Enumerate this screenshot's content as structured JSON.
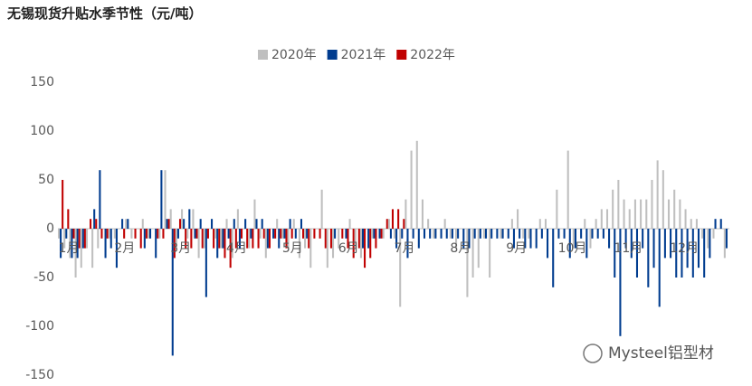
{
  "chart_data": {
    "type": "bar",
    "title": "无锡现货升贴水季节性（元/吨）",
    "watermark": "Mysteel铝型材",
    "categories": [
      "1月",
      null,
      null,
      null,
      null,
      null,
      null,
      null,
      null,
      null,
      "2月",
      null,
      null,
      null,
      null,
      null,
      null,
      null,
      null,
      null,
      "3月",
      null,
      null,
      null,
      null,
      null,
      null,
      null,
      null,
      null,
      "4月",
      null,
      null,
      null,
      null,
      null,
      null,
      null,
      null,
      null,
      "5月",
      null,
      null,
      null,
      null,
      null,
      null,
      null,
      null,
      null,
      "6月",
      null,
      null,
      null,
      null,
      null,
      null,
      null,
      null,
      null,
      "7月",
      null,
      null,
      null,
      null,
      null,
      null,
      null,
      null,
      null,
      "8月",
      null,
      null,
      null,
      null,
      null,
      null,
      null,
      null,
      null,
      "9月",
      null,
      null,
      null,
      null,
      null,
      null,
      null,
      null,
      null,
      "10月",
      null,
      null,
      null,
      null,
      null,
      null,
      null,
      null,
      null,
      "11月",
      null,
      null,
      null,
      null,
      null,
      null,
      null,
      null,
      null,
      "12月",
      null,
      null,
      null,
      null,
      null,
      null,
      null,
      null,
      null
    ],
    "series": [
      {
        "name": "2020年",
        "color": "#bfbfbf",
        "values": [
          -10,
          -20,
          -30,
          -50,
          -40,
          -20,
          -40,
          -20,
          0,
          -10,
          -10,
          0,
          10,
          -10,
          0,
          10,
          -10,
          0,
          -10,
          60,
          20,
          -20,
          20,
          -10,
          20,
          -30,
          -20,
          0,
          -10,
          -20,
          10,
          -30,
          20,
          0,
          -20,
          30,
          -10,
          -30,
          0,
          10,
          -10,
          -20,
          10,
          -30,
          -20,
          -40,
          0,
          40,
          -40,
          -30,
          -20,
          0,
          10,
          -20,
          -30,
          0,
          -10,
          0,
          -10,
          10,
          -10,
          -80,
          30,
          80,
          90,
          30,
          10,
          -10,
          0,
          10,
          -10,
          -20,
          0,
          -70,
          -50,
          -40,
          -10,
          -50,
          0,
          -10,
          0,
          10,
          20,
          -10,
          -10,
          0,
          10,
          10,
          0,
          40,
          0,
          80,
          -20,
          0,
          10,
          -20,
          10,
          20,
          20,
          40,
          50,
          30,
          20,
          30,
          30,
          30,
          50,
          70,
          60,
          30,
          40,
          30,
          20,
          10,
          10,
          -10,
          -20,
          -10,
          0,
          -30
        ]
      },
      {
        "name": "2021年",
        "color": "#003c8f",
        "values": [
          -30,
          -10,
          -30,
          -30,
          -20,
          0,
          20,
          60,
          -30,
          -20,
          -40,
          10,
          10,
          0,
          0,
          -20,
          -10,
          -30,
          60,
          10,
          -130,
          -10,
          10,
          20,
          -10,
          10,
          -70,
          10,
          -30,
          -20,
          -10,
          10,
          -20,
          10,
          -10,
          10,
          10,
          -20,
          -10,
          -20,
          -10,
          10,
          -10,
          10,
          -10,
          0,
          0,
          0,
          0,
          -10,
          0,
          -10,
          0,
          0,
          -20,
          -20,
          -10,
          -10,
          0,
          -10,
          -20,
          -10,
          -30,
          -10,
          -20,
          -10,
          -10,
          -10,
          -10,
          -10,
          -10,
          -10,
          -20,
          -20,
          -10,
          -10,
          -10,
          -10,
          -10,
          -10,
          -10,
          -20,
          -10,
          -20,
          -20,
          -20,
          -10,
          -30,
          -60,
          -10,
          -10,
          -30,
          -20,
          -10,
          -30,
          -10,
          -10,
          -10,
          -20,
          -50,
          -110,
          -20,
          -30,
          -50,
          -20,
          -60,
          -40,
          -80,
          -30,
          -30,
          -50,
          -50,
          -40,
          -50,
          -40,
          -50,
          -30,
          10,
          10,
          -20
        ]
      },
      {
        "name": "2022年",
        "color": "#c00000",
        "values": [
          50,
          20,
          -10,
          -20,
          -20,
          10,
          10,
          -10,
          -10,
          0,
          0,
          -10,
          0,
          -10,
          -20,
          -10,
          0,
          -10,
          -10,
          10,
          -30,
          10,
          -20,
          -20,
          -10,
          -20,
          -10,
          -20,
          -20,
          -30,
          -40,
          -20,
          -10,
          -20,
          -20,
          -20,
          -10,
          -20,
          -10,
          -10,
          -20,
          -10,
          0,
          -10,
          -20,
          -10,
          -10,
          -20,
          -20,
          0,
          -10,
          -20,
          -30,
          -20,
          -40,
          -30,
          -20,
          -10,
          10,
          20,
          20,
          10,
          null,
          null,
          null,
          null,
          null,
          null,
          null,
          null,
          null,
          null,
          null,
          null,
          null,
          null,
          null,
          null,
          null,
          null,
          null,
          null,
          null,
          null,
          null,
          null,
          null,
          null,
          null,
          null,
          null,
          null,
          null,
          null,
          null,
          null,
          null,
          null,
          null,
          null,
          null,
          null,
          null,
          null,
          null,
          null,
          null,
          null,
          null,
          null,
          null,
          null,
          null,
          null,
          null,
          null,
          null,
          null,
          null,
          null
        ]
      }
    ],
    "ylim": [
      -150,
      150
    ],
    "yticks": [
      -150,
      -100,
      -50,
      0,
      50,
      100,
      150
    ]
  }
}
